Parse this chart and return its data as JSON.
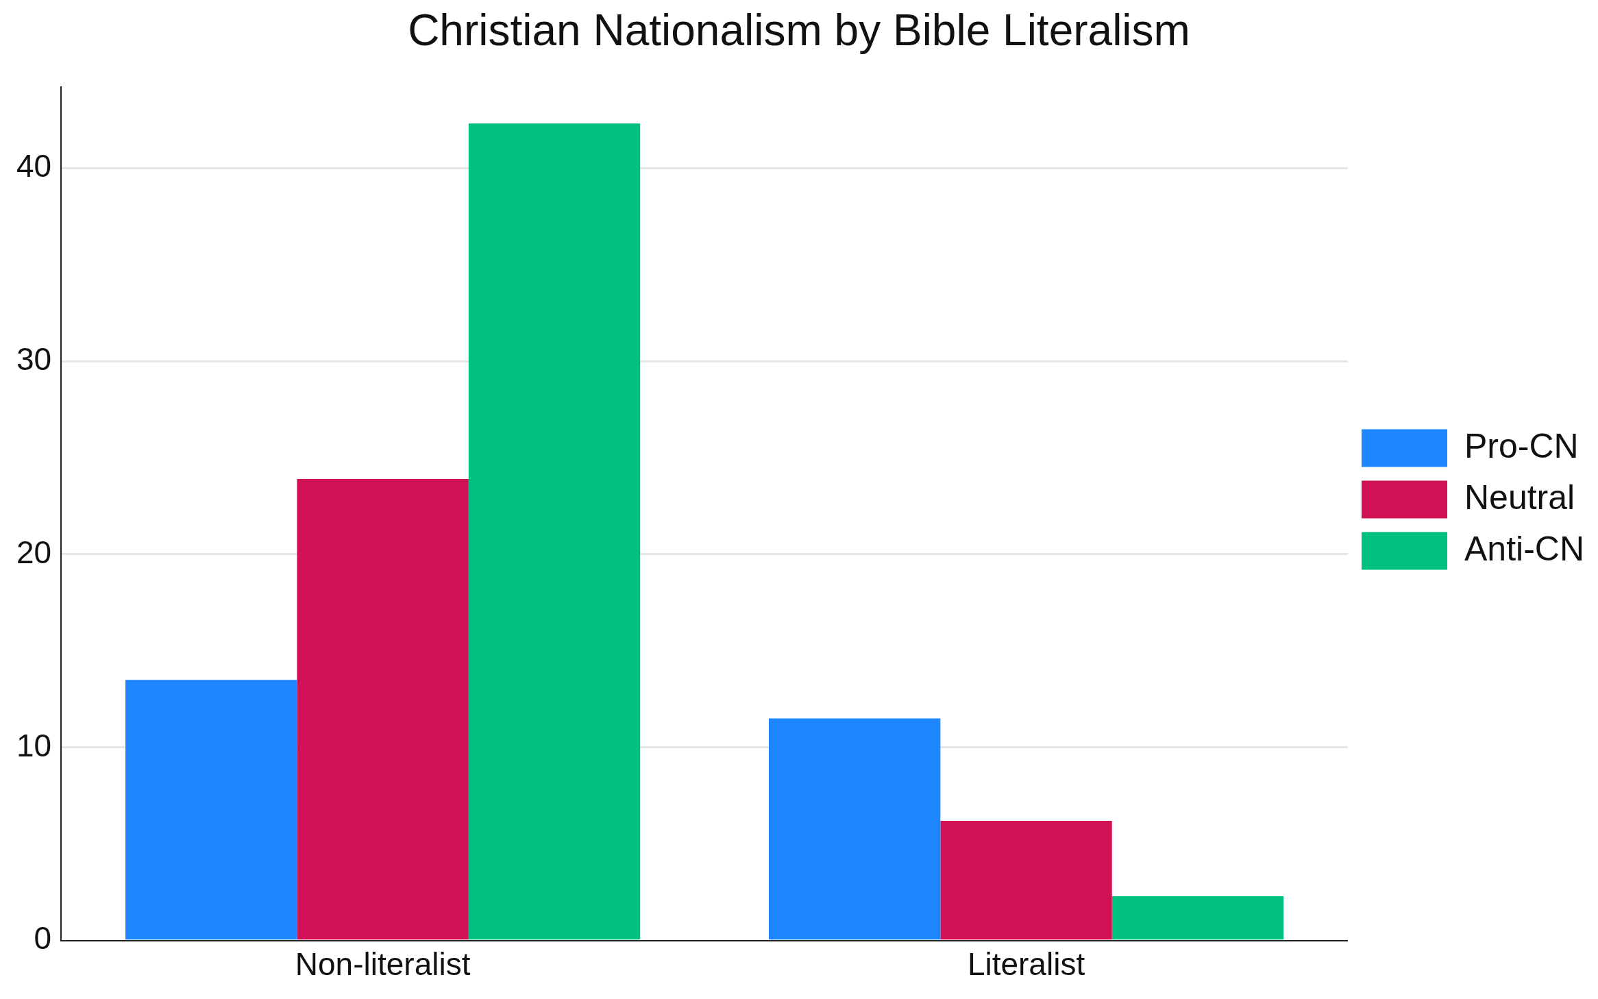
{
  "chart_data": {
    "type": "bar",
    "title": "Christian Nationalism by Bible Literalism",
    "categories": [
      "Non-literalist",
      "Literalist"
    ],
    "series": [
      {
        "name": "Pro-CN",
        "color": "#1e87ff",
        "values": [
          13.5,
          11.5
        ]
      },
      {
        "name": "Neutral",
        "color": "#d21055",
        "values": [
          23.9,
          6.2
        ]
      },
      {
        "name": "Anti-CN",
        "color": "#00c07f",
        "values": [
          42.3,
          2.3
        ]
      }
    ],
    "ylim": [
      0,
      44.2
    ],
    "yticks": [
      0,
      10,
      20,
      30,
      40
    ],
    "grid": "y",
    "legend": "right"
  }
}
